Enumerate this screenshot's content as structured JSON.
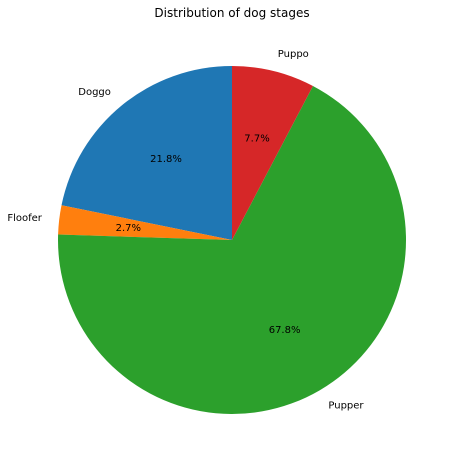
{
  "chart_data": {
    "type": "pie",
    "title": "Distribution of dog stages",
    "categories": [
      "Doggo",
      "Floofer",
      "Pupper",
      "Puppo"
    ],
    "values": [
      21.8,
      2.7,
      67.8,
      7.7
    ],
    "percent_labels": [
      "21.8%",
      "2.7%",
      "67.8%",
      "7.7%"
    ],
    "colors": [
      "#1f77b4",
      "#ff7f0e",
      "#2ca02c",
      "#d62728"
    ],
    "start_angle_deg": 90,
    "direction": "counterclockwise",
    "legend": "none"
  }
}
